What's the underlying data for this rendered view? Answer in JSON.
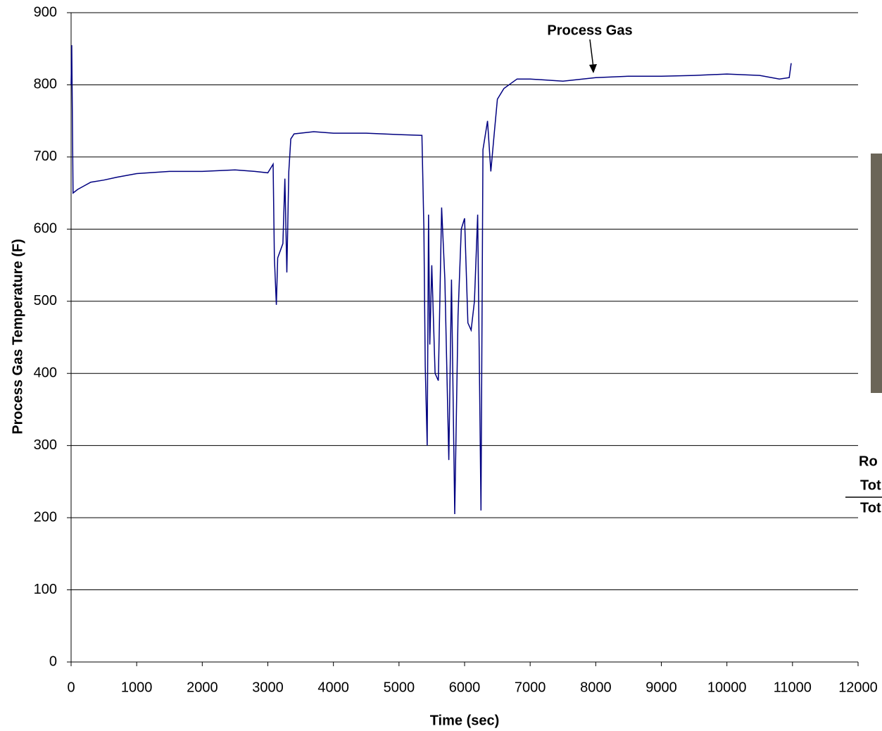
{
  "chart_data": {
    "type": "line",
    "annotation": "Process Gas",
    "x_label": "Time (sec)",
    "y_label": "Process Gas Temperature (F)",
    "side_labels": [
      "Ro",
      "Tot",
      "Tot"
    ],
    "xlim": [
      0,
      12000
    ],
    "xticks": [
      0,
      1000,
      2000,
      3000,
      4000,
      5000,
      6000,
      7000,
      8000,
      9000,
      10000,
      11000,
      12000
    ],
    "ylim": [
      0,
      900
    ],
    "yticks": [
      0,
      100,
      200,
      300,
      400,
      500,
      600,
      700,
      800,
      900
    ],
    "grid": true,
    "series": [
      {
        "color": "#000080",
        "x": [
          0,
          10,
          30,
          100,
          200,
          300,
          500,
          700,
          1000,
          1500,
          2000,
          2500,
          2800,
          3000,
          3080,
          3100,
          3130,
          3150,
          3230,
          3260,
          3290,
          3320,
          3350,
          3400,
          3700,
          4000,
          4500,
          5000,
          5350,
          5380,
          5400,
          5430,
          5450,
          5470,
          5500,
          5550,
          5600,
          5650,
          5700,
          5760,
          5800,
          5850,
          5900,
          5950,
          6000,
          6050,
          6100,
          6150,
          6200,
          6250,
          6280,
          6350,
          6400,
          6450,
          6500,
          6600,
          6800,
          7000,
          7500,
          8000,
          8500,
          9000,
          9500,
          10000,
          10500,
          10800,
          10950,
          10980
        ],
        "values": [
          800,
          855,
          650,
          655,
          660,
          665,
          668,
          672,
          677,
          680,
          680,
          682,
          680,
          678,
          690,
          560,
          495,
          560,
          580,
          670,
          540,
          680,
          725,
          732,
          735,
          733,
          733,
          731,
          730,
          600,
          410,
          300,
          620,
          440,
          550,
          400,
          390,
          630,
          530,
          280,
          530,
          205,
          480,
          600,
          615,
          470,
          460,
          500,
          620,
          210,
          710,
          750,
          680,
          730,
          780,
          795,
          808,
          808,
          805,
          810,
          812,
          812,
          813,
          815,
          813,
          808,
          810,
          830
        ]
      }
    ]
  }
}
